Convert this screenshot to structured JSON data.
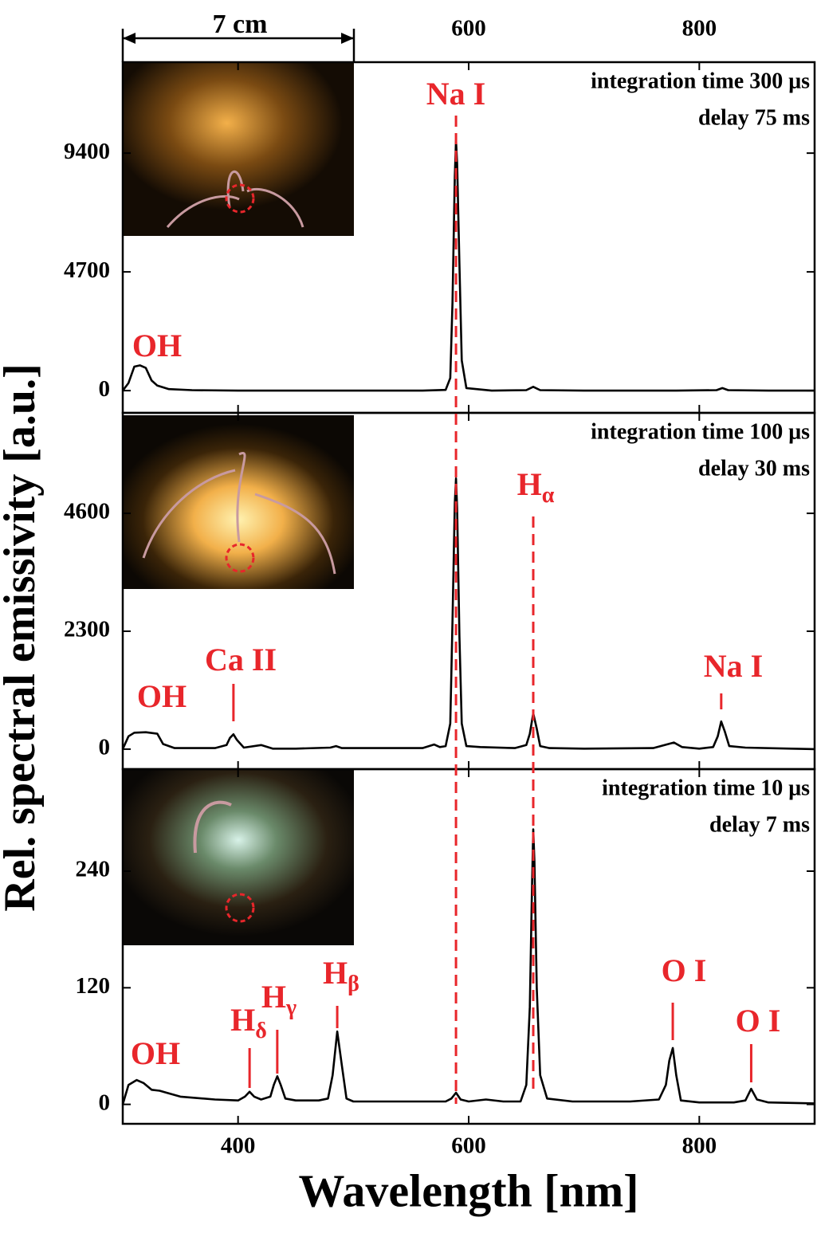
{
  "chart_data": {
    "type": "line",
    "x_label": "Wavelength [nm]",
    "y_label": "Rel. spectral emissivity [a.u.]",
    "scale_bar": "7 cm",
    "xlim": [
      300,
      900
    ],
    "xticks": [
      400,
      600,
      800
    ],
    "top_xticks": [
      600,
      800
    ],
    "reference_lines": [
      {
        "x": 589,
        "color": "#e8262b"
      },
      {
        "x": 656,
        "color": "#e8262b"
      }
    ],
    "panels": [
      {
        "ylim": [
          -880,
          13000
        ],
        "yticks": [
          0,
          4700,
          9400
        ],
        "notes": [
          "integration time 300 μs",
          "delay 75 ms"
        ],
        "annotations": [
          {
            "text": "OH"
          },
          {
            "text": "Na I",
            "x": 589
          }
        ],
        "series": [
          {
            "color": "#000000",
            "x": [
              300,
              305,
              310,
              315,
              320,
              325,
              330,
              340,
              360,
              400,
              450,
              500,
              560,
              580,
              584,
              586,
              588,
              589,
              590,
              592,
              594,
              598,
              620,
              650,
              656,
              662,
              700,
              780,
              815,
              820,
              825,
              860,
              900
            ],
            "values": [
              0,
              300,
              950,
              1000,
              900,
              400,
              200,
              60,
              20,
              0,
              0,
              0,
              0,
              30,
              500,
              3500,
              8500,
              9900,
              9000,
              5000,
              1200,
              100,
              0,
              20,
              150,
              20,
              0,
              0,
              20,
              100,
              20,
              0,
              0
            ]
          }
        ]
      },
      {
        "ylim": [
          -390,
          6560
        ],
        "yticks": [
          0,
          2300,
          4600
        ],
        "notes": [
          "integration time 100 μs",
          "delay 30 ms"
        ],
        "annotations": [
          {
            "text": "OH"
          },
          {
            "text": "Ca II",
            "x": 396
          },
          {
            "text": "H",
            "sub": "α",
            "x": 656
          },
          {
            "text": "Na I",
            "x": 819
          }
        ],
        "series": [
          {
            "color": "#000000",
            "x": [
              300,
              305,
              310,
              320,
              330,
              335,
              345,
              360,
              380,
              390,
              393,
              396,
              399,
              405,
              420,
              430,
              450,
              480,
              485,
              490,
              520,
              560,
              570,
              575,
              580,
              584,
              586,
              588,
              589,
              590,
              592,
              594,
              598,
              610,
              640,
              650,
              653,
              656,
              659,
              662,
              670,
              700,
              760,
              770,
              778,
              785,
              800,
              812,
              816,
              819,
              822,
              826,
              840,
              880,
              900
            ],
            "values": [
              0,
              250,
              320,
              330,
              300,
              100,
              20,
              20,
              20,
              80,
              220,
              290,
              180,
              30,
              80,
              10,
              10,
              30,
              60,
              20,
              20,
              20,
              90,
              40,
              60,
              500,
              2500,
              4800,
              5280,
              4700,
              2200,
              500,
              60,
              40,
              20,
              80,
              300,
              700,
              400,
              60,
              20,
              10,
              20,
              80,
              130,
              40,
              10,
              40,
              250,
              540,
              350,
              60,
              30,
              10,
              0
            ]
          }
        ]
      },
      {
        "ylim": [
          -20,
          345
        ],
        "yticks": [
          0,
          120,
          240
        ],
        "notes": [
          "integration time 10 μs",
          "delay 7 ms"
        ],
        "annotations": [
          {
            "text": "OH"
          },
          {
            "text": "H",
            "sub": "δ",
            "x": 410
          },
          {
            "text": "H",
            "sub": "γ",
            "x": 434
          },
          {
            "text": "H",
            "sub": "β",
            "x": 486
          },
          {
            "text": "O I",
            "x": 777
          },
          {
            "text": "O I",
            "x": 845
          }
        ],
        "series": [
          {
            "color": "#000000",
            "x": [
              300,
              305,
              312,
              318,
              325,
              332,
              338,
              350,
              380,
              400,
              406,
              410,
              414,
              420,
              428,
              431,
              434,
              437,
              441,
              450,
              470,
              478,
              482,
              486,
              490,
              494,
              500,
              540,
              580,
              585,
              589,
              593,
              600,
              615,
              630,
              645,
              650,
              653,
              655,
              656,
              657,
              659,
              662,
              668,
              690,
              740,
              765,
              771,
              774,
              777,
              780,
              784,
              800,
              830,
              840,
              845,
              850,
              860,
              900
            ],
            "values": [
              0,
              20,
              25,
              22,
              15,
              14,
              12,
              8,
              5,
              4,
              8,
              13,
              8,
              5,
              8,
              20,
              29,
              20,
              6,
              4,
              4,
              6,
              30,
              75,
              40,
              6,
              3,
              3,
              3,
              6,
              12,
              5,
              3,
              5,
              3,
              3,
              20,
              100,
              230,
              283,
              250,
              120,
              30,
              6,
              3,
              3,
              5,
              20,
              45,
              58,
              30,
              4,
              2,
              2,
              4,
              16,
              5,
              2,
              1
            ]
          }
        ]
      }
    ]
  }
}
